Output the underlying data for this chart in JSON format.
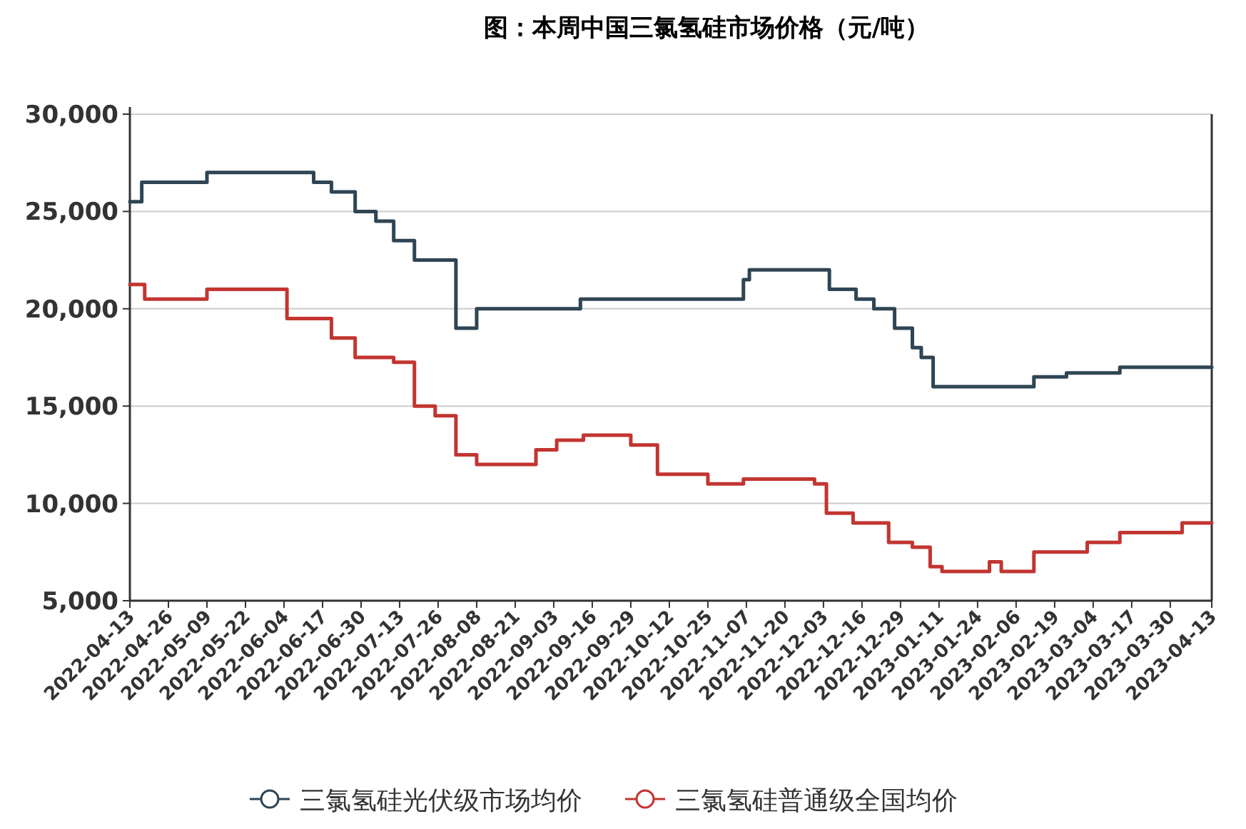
{
  "chart_data": {
    "type": "step",
    "title": "图：本周中国三氯氢硅市场价格（元/吨）",
    "xlim": [
      "2022-04-13",
      "2023-04-13"
    ],
    "xticks": [
      "2022-04-13",
      "2022-04-26",
      "2022-05-09",
      "2022-05-22",
      "2022-06-04",
      "2022-06-17",
      "2022-06-30",
      "2022-07-13",
      "2022-07-26",
      "2022-08-08",
      "2022-08-21",
      "2022-09-03",
      "2022-09-16",
      "2022-09-29",
      "2022-10-12",
      "2022-10-25",
      "2022-11-07",
      "2022-11-20",
      "2022-12-03",
      "2022-12-16",
      "2022-12-29",
      "2023-01-11",
      "2023-01-24",
      "2023-02-06",
      "2023-02-19",
      "2023-03-04",
      "2023-03-17",
      "2023-03-30",
      "2023-04-13"
    ],
    "ylim": [
      5000,
      30000
    ],
    "yticks": [
      {
        "value": 5000,
        "label": "5,000"
      },
      {
        "value": 10000,
        "label": "10,000"
      },
      {
        "value": 15000,
        "label": "15,000"
      },
      {
        "value": 20000,
        "label": "20,000"
      },
      {
        "value": 25000,
        "label": "25,000"
      },
      {
        "value": 30000,
        "label": "30,000"
      }
    ],
    "grid": "y",
    "legend": "bottom",
    "series": [
      {
        "name": "三氯氢硅光伏级市场均价",
        "color": "#2f4554",
        "x": [
          "2022-04-13",
          "2022-04-17",
          "2022-05-09",
          "2022-06-14",
          "2022-06-20",
          "2022-06-28",
          "2022-07-05",
          "2022-07-11",
          "2022-07-18",
          "2022-08-01",
          "2022-08-08",
          "2022-09-12",
          "2022-11-06",
          "2022-11-08",
          "2022-12-05",
          "2022-12-14",
          "2022-12-20",
          "2022-12-27",
          "2023-01-02",
          "2023-01-05",
          "2023-01-09",
          "2023-02-12",
          "2023-02-23",
          "2023-03-13",
          "2023-04-13"
        ],
        "values": [
          25500,
          26500,
          27000,
          26500,
          26000,
          25000,
          24500,
          23500,
          22500,
          19000,
          20000,
          20500,
          21500,
          22000,
          21000,
          20500,
          20000,
          19000,
          18000,
          17500,
          16000,
          16500,
          16700,
          17000,
          17000
        ]
      },
      {
        "name": "三氯氢硅普通级全国均价",
        "color": "#c23531",
        "x": [
          "2022-04-13",
          "2022-04-18",
          "2022-05-09",
          "2022-06-05",
          "2022-06-20",
          "2022-06-28",
          "2022-07-11",
          "2022-07-18",
          "2022-07-25",
          "2022-08-01",
          "2022-08-08",
          "2022-08-28",
          "2022-09-04",
          "2022-09-13",
          "2022-09-29",
          "2022-10-08",
          "2022-10-25",
          "2022-11-06",
          "2022-11-30",
          "2022-12-04",
          "2022-12-13",
          "2022-12-25",
          "2023-01-02",
          "2023-01-08",
          "2023-01-12",
          "2023-01-28",
          "2023-02-01",
          "2023-02-12",
          "2023-03-02",
          "2023-03-13",
          "2023-04-03",
          "2023-04-13"
        ],
        "values": [
          21250,
          20500,
          21000,
          19500,
          18500,
          17500,
          17250,
          15000,
          14500,
          12500,
          12000,
          12750,
          13250,
          13500,
          13000,
          11500,
          11000,
          11250,
          11000,
          9500,
          9000,
          8000,
          7750,
          6750,
          6500,
          7000,
          6500,
          7500,
          8000,
          8500,
          9000,
          9000
        ]
      }
    ]
  }
}
